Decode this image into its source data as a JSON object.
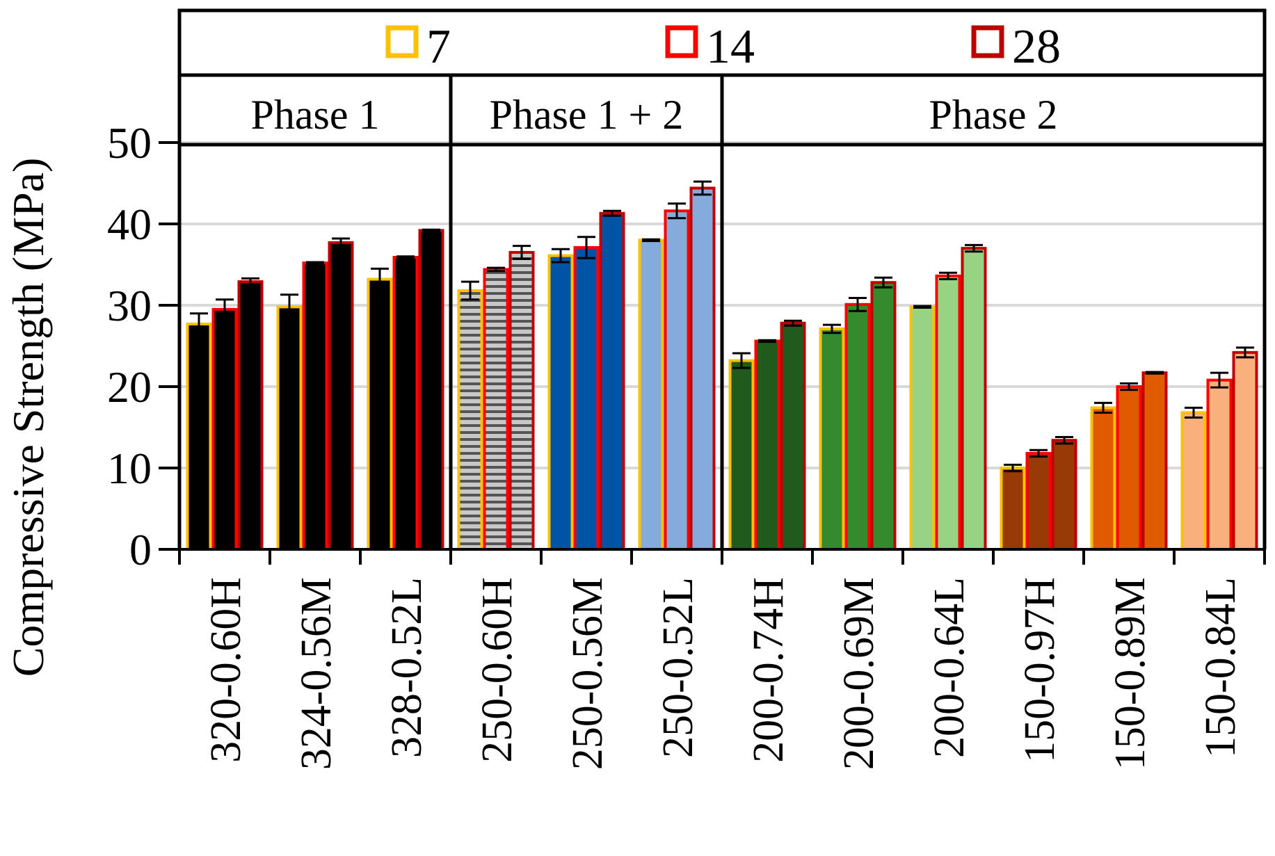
{
  "chart_data": {
    "type": "bar",
    "ylabel": "Compressive Strength (MPa)",
    "ylim": [
      0,
      50
    ],
    "yticks": [
      0,
      10,
      20,
      30,
      40,
      50
    ],
    "grid": true,
    "legend_position": "top",
    "legend": [
      {
        "name": "7",
        "color": "#ffc000"
      },
      {
        "name": "14",
        "color": "#ff0000"
      },
      {
        "name": "28",
        "color": "#c00000"
      }
    ],
    "phases": [
      {
        "label": "Phase 1",
        "start": 0,
        "end": 3
      },
      {
        "label": "Phase 1 + 2",
        "start": 3,
        "end": 6
      },
      {
        "label": "Phase 2",
        "start": 6,
        "end": 12
      }
    ],
    "categories": [
      "320-0.60H",
      "324-0.56M",
      "328-0.52L",
      "250-0.60H",
      "250-0.56M",
      "250-0.52L",
      "200-0.74H",
      "200-0.69M",
      "200-0.64L",
      "150-0.97H",
      "150-0.89M",
      "150-0.84L"
    ],
    "fill_colors": [
      "#000000",
      "#000000",
      "#000000",
      "#bfbfbf",
      "#0054a6",
      "#85aadc",
      "#215a1d",
      "#358a2e",
      "#98d383",
      "#983a05",
      "#e05a00",
      "#f9b07d"
    ],
    "fill_patterns": [
      "solid",
      "solid",
      "solid",
      "stripes",
      "solid",
      "solid",
      "solid",
      "solid",
      "solid",
      "solid",
      "solid",
      "solid"
    ],
    "series": [
      {
        "name": "7",
        "values": [
          27.7,
          29.8,
          33.2,
          31.8,
          36.1,
          38.0,
          23.2,
          27.1,
          29.8,
          10.0,
          17.4,
          16.8
        ],
        "errors": [
          1.3,
          1.5,
          1.3,
          1.1,
          0.8,
          0.1,
          0.9,
          0.5,
          0.1,
          0.4,
          0.6,
          0.6
        ]
      },
      {
        "name": "14",
        "values": [
          29.5,
          35.2,
          35.9,
          34.4,
          37.1,
          41.6,
          25.6,
          30.1,
          33.6,
          11.8,
          20.0,
          20.8
        ],
        "errors": [
          1.2,
          0.1,
          0.1,
          0.2,
          1.3,
          0.9,
          0.1,
          0.8,
          0.4,
          0.4,
          0.4,
          0.9
        ]
      },
      {
        "name": "28",
        "values": [
          32.9,
          37.7,
          39.2,
          36.5,
          41.3,
          44.4,
          27.8,
          32.8,
          37.0,
          13.4,
          21.7,
          24.2
        ],
        "errors": [
          0.4,
          0.5,
          0.1,
          0.8,
          0.3,
          0.8,
          0.3,
          0.6,
          0.4,
          0.4,
          0.1,
          0.6
        ]
      }
    ]
  }
}
